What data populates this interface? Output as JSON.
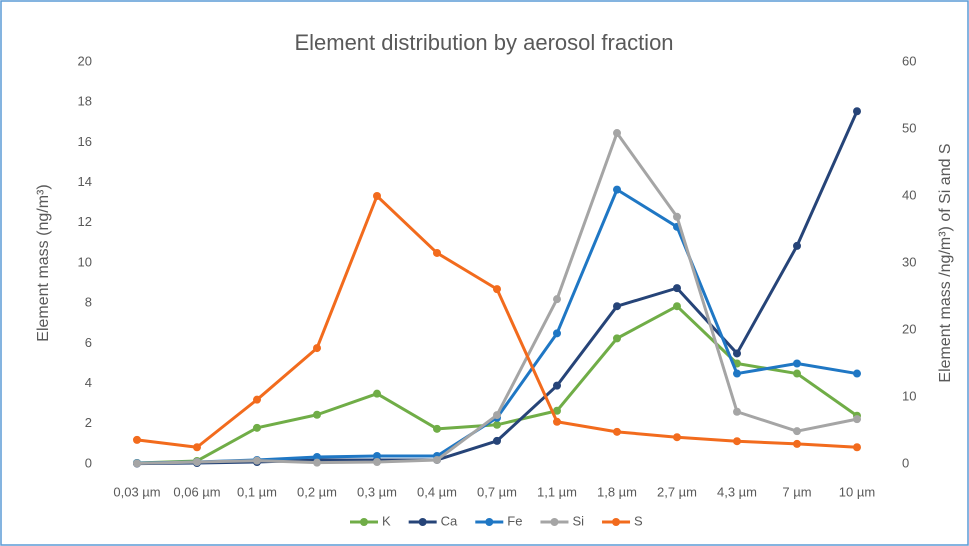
{
  "chart_data": {
    "type": "line",
    "title": "Element distribution by aerosol fraction",
    "y_label": "Element mass (ng/m³)",
    "y2_label": "Element mass /ng/m³) of Si and S",
    "categories": [
      "0,03 µm",
      "0,06 µm",
      "0,1 µm",
      "0,2 µm",
      "0,3 µm",
      "0,4 µm",
      "0,7 µm",
      "1,1 µm",
      "1,8 µm",
      "2,7 µm",
      "4,3 µm",
      "7 µm",
      "10 µm"
    ],
    "series": [
      {
        "name": "K",
        "color": "#70ad47",
        "values": [
          0.05,
          0.15,
          1.8,
          2.45,
          3.5,
          1.75,
          1.95,
          2.65,
          6.25,
          7.85,
          5.0,
          4.5,
          2.4
        ]
      },
      {
        "name": "Ca",
        "color": "#264478",
        "values": [
          0.02,
          0.05,
          0.1,
          0.2,
          0.2,
          0.2,
          1.15,
          3.9,
          7.85,
          8.75,
          5.5,
          10.85,
          17.55
        ]
      },
      {
        "name": "Fe",
        "color": "#1f77c4",
        "values": [
          0.05,
          0.1,
          0.2,
          0.35,
          0.4,
          0.4,
          2.3,
          6.5,
          13.65,
          11.8,
          4.5,
          5.0,
          4.5
        ]
      },
      {
        "name": "Si",
        "color": "#a5a5a5",
        "axis": "y2",
        "values": [
          0.1,
          0.3,
          0.5,
          0.2,
          0.3,
          0.6,
          7.3,
          24.6,
          49.4,
          36.9,
          7.8,
          4.9,
          6.7
        ]
      },
      {
        "name": "S",
        "color": "#f26b1d",
        "axis": "y2",
        "values": [
          3.6,
          2.5,
          9.6,
          17.3,
          40,
          31.5,
          26.1,
          6.3,
          4.8,
          4.0,
          3.4,
          3.0,
          2.5
        ]
      }
    ],
    "ylim": [
      0,
      20
    ],
    "yticks": [
      0,
      2,
      4,
      6,
      8,
      10,
      12,
      14,
      16,
      18,
      20
    ],
    "y2lim": [
      0,
      60
    ],
    "y2ticks": [
      0,
      10,
      20,
      30,
      40,
      50,
      60
    ],
    "legend": "bottom"
  }
}
